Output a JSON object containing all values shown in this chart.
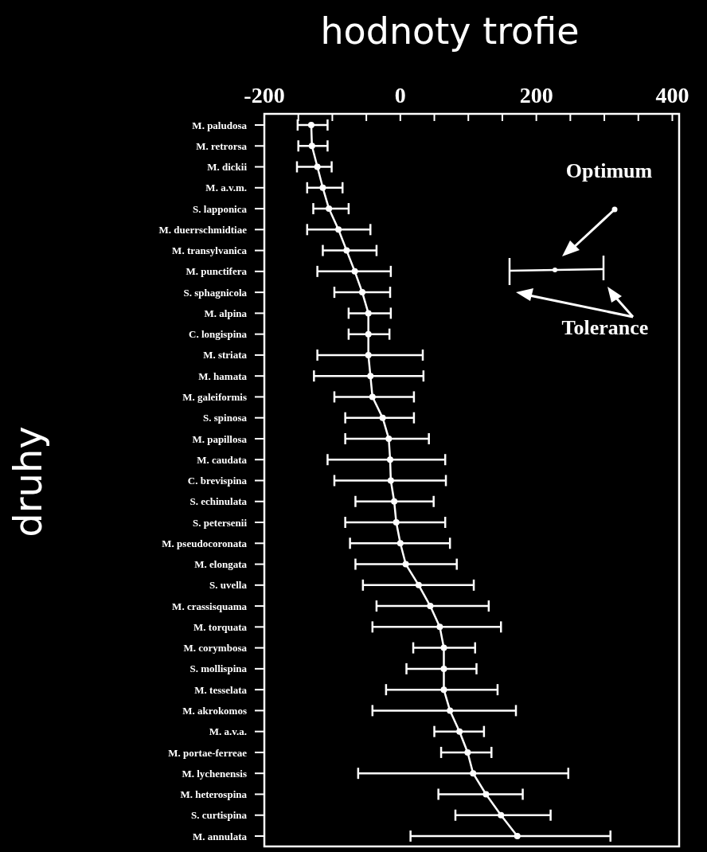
{
  "chart_data": {
    "type": "line",
    "orientation": "horizontal",
    "title": "hodnoty trofie",
    "ylabel": "druhy",
    "categories": [
      "M. paludosa",
      "M. retrorsa",
      "M. dickii",
      "M. a.v.m.",
      "S. lapponica",
      "M. duerrschmidtiae",
      "M. transylvanica",
      "M. punctifera",
      "S. sphagnicola",
      "M. alpina",
      "C. longispina",
      "M. striata",
      "M. hamata",
      "M. galeiformis",
      "S. spinosa",
      "M. papillosa",
      "M. caudata",
      "C. brevispina",
      "S. echinulata",
      "S. petersenii",
      "M. pseudocoronata",
      "M. elongata",
      "S. uvella",
      "M. crassisquama",
      "M. torquata",
      "M. corymbosa",
      "S. mollispina",
      "M. tesselata",
      "M. akrokomos",
      "M. a.v.a.",
      "M. portae-ferreae",
      "M. lychenensis",
      "M. heterospina",
      "S. curtispina",
      "M. annulata"
    ],
    "series": [
      {
        "color": "#ffffff",
        "values": [
          -131,
          -130,
          -122,
          -114,
          -105,
          -91,
          -79,
          -67,
          -56,
          -47,
          -47,
          -47,
          -44,
          -41,
          -26,
          -17,
          -15,
          -14,
          -9,
          -6,
          0,
          8,
          27,
          44,
          58,
          64,
          64,
          64,
          73,
          87,
          99,
          107,
          126,
          148,
          172
        ],
        "errors": [
          [
            -151,
            -107
          ],
          [
            -150,
            -107
          ],
          [
            -152,
            -101
          ],
          [
            -137,
            -85
          ],
          [
            -128,
            -76
          ],
          [
            -137,
            -44
          ],
          [
            -114,
            -35
          ],
          [
            -122,
            -14
          ],
          [
            -97,
            -15
          ],
          [
            -76,
            -14
          ],
          [
            -76,
            -16
          ],
          [
            -122,
            33
          ],
          [
            -127,
            34
          ],
          [
            -97,
            20
          ],
          [
            -81,
            20
          ],
          [
            -81,
            42
          ],
          [
            -107,
            66
          ],
          [
            -97,
            67
          ],
          [
            -66,
            49
          ],
          [
            -81,
            66
          ],
          [
            -74,
            73
          ],
          [
            -66,
            83
          ],
          [
            -55,
            108
          ],
          [
            -35,
            130
          ],
          [
            -41,
            148
          ],
          [
            19,
            110
          ],
          [
            9,
            112
          ],
          [
            -21,
            143
          ],
          [
            -41,
            170
          ],
          [
            50,
            123
          ],
          [
            60,
            134
          ],
          [
            -62,
            247
          ],
          [
            56,
            180
          ],
          [
            81,
            221
          ],
          [
            15,
            309
          ]
        ]
      }
    ],
    "xlim": [
      -200,
      410
    ],
    "xticks": [
      -200,
      {
        "value": -150,
        "label": null
      },
      {
        "value": -100,
        "label": null
      },
      {
        "value": -50,
        "label": null
      },
      0,
      {
        "value": 50,
        "label": null
      },
      {
        "value": 100,
        "label": null
      },
      {
        "value": 150,
        "label": null
      },
      200,
      {
        "value": 250,
        "label": null
      },
      {
        "value": 300,
        "label": null
      },
      {
        "value": 350,
        "label": null
      },
      400
    ],
    "marker": "circle",
    "line_style": "solid",
    "grid": false,
    "annotations": [
      "Optimum",
      "Tolerance"
    ]
  }
}
